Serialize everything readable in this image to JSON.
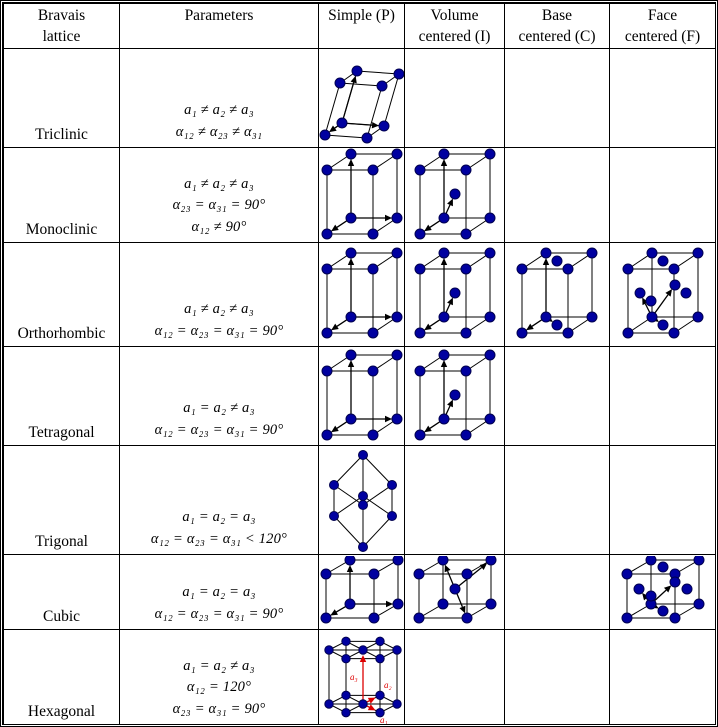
{
  "table": {
    "headers": [
      {
        "id": "lattice",
        "lines": [
          "Bravais",
          "lattice"
        ]
      },
      {
        "id": "params",
        "lines": [
          "Parameters"
        ]
      },
      {
        "id": "simple",
        "lines": [
          "Simple (P)"
        ]
      },
      {
        "id": "volume",
        "lines": [
          "Volume",
          "centered (I)"
        ]
      },
      {
        "id": "base",
        "lines": [
          "Base",
          "centered (C)"
        ]
      },
      {
        "id": "face",
        "lines": [
          "Face",
          "centered (F)"
        ]
      }
    ],
    "rows": [
      {
        "name": "Triclinic",
        "parameters": [
          "a₁ ≠ a₂ ≠ a₃",
          "α₁₂ ≠ α₂₃ ≠ α₃₁"
        ],
        "figures": {
          "simple": "triclinic",
          "volume": null,
          "base": null,
          "face": null
        }
      },
      {
        "name": "Monoclinic",
        "parameters": [
          "a₁ ≠ a₂ ≠ a₃",
          "α₂₃ = α₃₁ = 90°",
          "α₁₂ ≠ 90°"
        ],
        "figures": {
          "simple": "box-p",
          "volume": "box-i",
          "base": null,
          "face": null
        }
      },
      {
        "name": "Orthorhombic",
        "parameters": [
          "a₁ ≠ a₂ ≠ a₃",
          "α₁₂ = α₂₃ = α₃₁ = 90°"
        ],
        "figures": {
          "simple": "box-p",
          "volume": "box-i",
          "base": "box-c",
          "face": "box-f"
        }
      },
      {
        "name": "Tetragonal",
        "parameters": [
          "a₁ = a₂ ≠ a₃",
          "α₁₂ = α₂₃ = α₃₁ = 90°"
        ],
        "figures": {
          "simple": "box-p",
          "volume": "box-i",
          "base": null,
          "face": null
        }
      },
      {
        "name": "Trigonal",
        "parameters": [
          "a₁ = a₂ = a₃",
          "α₁₂ = α₂₃ = α₃₁ < 120°"
        ],
        "figures": {
          "simple": "trigonal",
          "volume": null,
          "base": null,
          "face": null
        }
      },
      {
        "name": "Cubic",
        "parameters": [
          "a₁ = a₂ = a₃",
          "α₁₂ = α₂₃ = α₃₁ = 90°"
        ],
        "figures": {
          "simple": "cube-p",
          "volume": "cube-i",
          "base": null,
          "face": "cube-f"
        }
      },
      {
        "name": "Hexagonal",
        "parameters": [
          "a₁ = a₂ ≠ a₃",
          "α₁₂ = 120°",
          "α₂₃ = α₃₁ = 90°"
        ],
        "figures": {
          "simple": "hexagonal",
          "volume": null,
          "base": null,
          "face": null
        }
      }
    ]
  },
  "figure_labels": {
    "hexagonal_axes": [
      "a₁",
      "a₂",
      "a₃"
    ]
  },
  "colors": {
    "atom": "#0000a0",
    "atom_edge": "#000050",
    "line": "#000000",
    "axis_label": "#dd0000",
    "border": "#000000",
    "background": "#ffffff"
  }
}
